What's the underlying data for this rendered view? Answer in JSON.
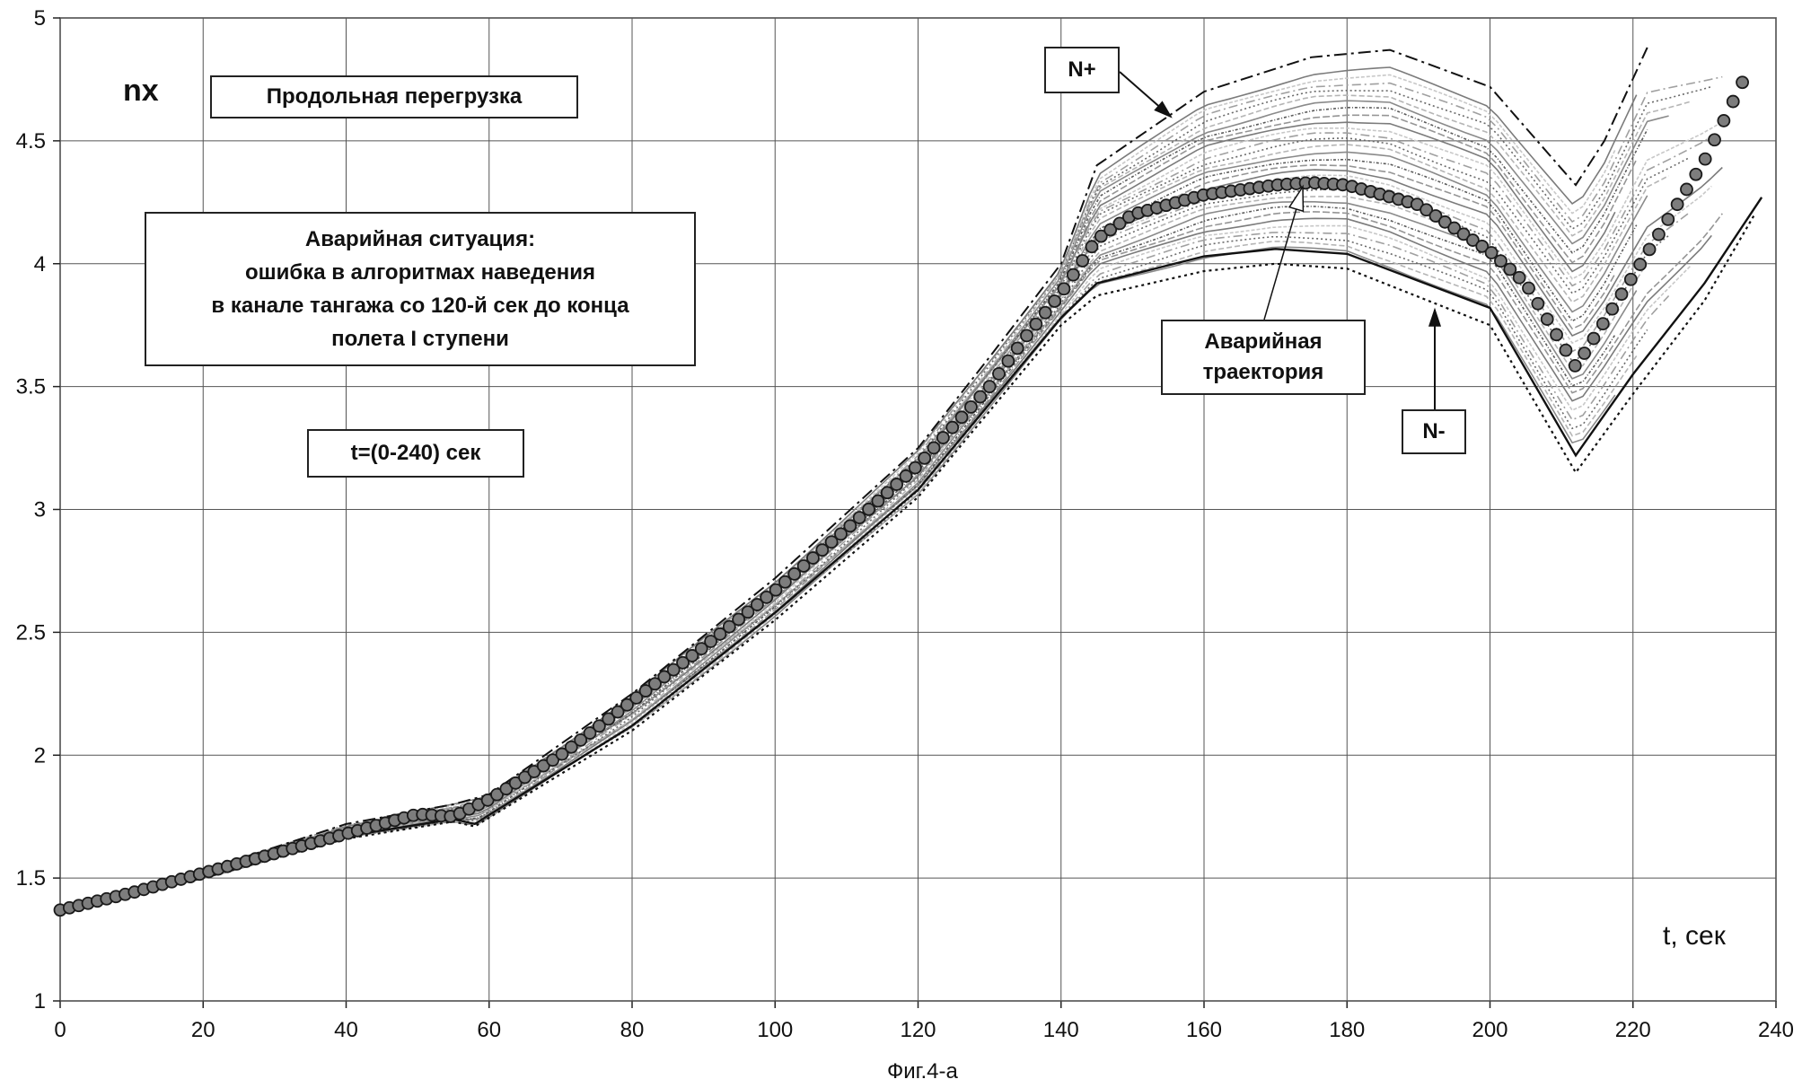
{
  "chart_data": {
    "type": "line",
    "xlabel": "t, сек",
    "ylabel": "nx",
    "caption": "Фиг.4-а",
    "xlim": [
      0,
      240
    ],
    "ylim": [
      1,
      5
    ],
    "x_ticks": [
      "0",
      "20",
      "40",
      "60",
      "80",
      "100",
      "120",
      "140",
      "160",
      "180",
      "200",
      "220",
      "240"
    ],
    "y_ticks": [
      "1",
      "1.5",
      "2",
      "2.5",
      "3",
      "3.5",
      "4",
      "4.5",
      "5"
    ],
    "grid": true,
    "annotations": {
      "title_box": "Продольная перегрузка",
      "situation_lines": [
        "Аварийная ситуация:",
        "ошибка в алгоритмах наведения",
        "в канале тангажа со 120-й сек до конца",
        "полета I ступени"
      ],
      "time_box": "t=(0-240)  сек",
      "n_plus": "N+",
      "n_minus": "N-",
      "emergency_lines": [
        "Аварийная",
        "траектория"
      ]
    },
    "series": [
      {
        "name": "N+",
        "style": "dash-dot",
        "x": [
          0,
          20,
          40,
          55,
          60,
          80,
          100,
          120,
          130,
          140,
          145,
          160,
          175,
          186,
          200,
          212,
          216,
          222
        ],
        "y": [
          1.38,
          1.53,
          1.72,
          1.8,
          1.84,
          2.25,
          2.72,
          3.25,
          3.62,
          4.0,
          4.4,
          4.7,
          4.84,
          4.87,
          4.72,
          4.32,
          4.5,
          4.88
        ]
      },
      {
        "name": "Аварийная траектория",
        "style": "circle-markers",
        "x": [
          0,
          10,
          20,
          30,
          40,
          50,
          55,
          60,
          70,
          80,
          90,
          100,
          110,
          120,
          130,
          135,
          140,
          145,
          150,
          160,
          170,
          175,
          180,
          190,
          200,
          205,
          212,
          220,
          230,
          236
        ],
        "y": [
          1.37,
          1.44,
          1.52,
          1.6,
          1.68,
          1.76,
          1.75,
          1.82,
          2.0,
          2.22,
          2.44,
          2.67,
          2.92,
          3.18,
          3.5,
          3.7,
          3.88,
          4.1,
          4.2,
          4.28,
          4.32,
          4.33,
          4.32,
          4.24,
          4.05,
          3.92,
          3.58,
          3.95,
          4.42,
          4.78
        ]
      },
      {
        "name": "N-",
        "style": "dotted",
        "x": [
          0,
          20,
          40,
          55,
          58,
          80,
          100,
          120,
          130,
          140,
          145,
          160,
          170,
          180,
          200,
          212,
          220,
          230,
          237
        ],
        "y": [
          1.37,
          1.5,
          1.66,
          1.73,
          1.71,
          2.1,
          2.55,
          3.05,
          3.4,
          3.75,
          3.87,
          3.97,
          4.0,
          3.98,
          3.75,
          3.15,
          3.47,
          3.85,
          4.2
        ]
      },
      {
        "name": "envelope-low-solid",
        "style": "solid",
        "x": [
          0,
          20,
          40,
          55,
          58,
          80,
          100,
          120,
          130,
          140,
          145,
          160,
          170,
          180,
          200,
          212,
          220,
          230,
          238
        ],
        "y": [
          1.37,
          1.51,
          1.67,
          1.74,
          1.72,
          2.12,
          2.58,
          3.08,
          3.43,
          3.78,
          3.92,
          4.03,
          4.06,
          4.04,
          3.82,
          3.22,
          3.55,
          3.92,
          4.27
        ]
      }
    ]
  }
}
